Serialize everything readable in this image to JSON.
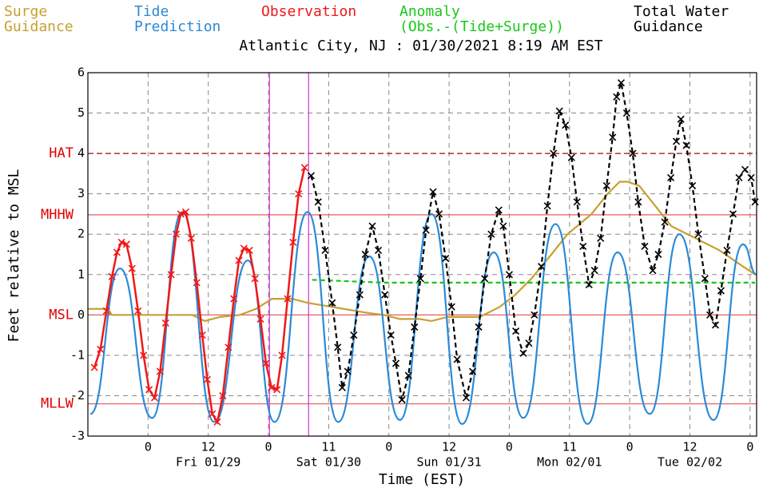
{
  "chart_data": {
    "type": "line",
    "title": "Atlantic City, NJ : 01/30/2021 8:19 AM EST",
    "y_label": "Feet relative to MSL",
    "x_label": "Time (EST)",
    "xlim": [
      -12,
      121.3
    ],
    "ylim": [
      -3,
      6
    ],
    "yticks": [
      -3,
      -2,
      -1,
      0,
      1,
      2,
      3,
      4,
      5,
      6
    ],
    "xticks": [
      0,
      12,
      {
        "value": 24,
        "label": "0"
      },
      {
        "value": 36,
        "label": "11"
      },
      {
        "value": 48,
        "label": "0"
      },
      {
        "value": 60,
        "label": "12"
      },
      {
        "value": 72,
        "label": "0"
      },
      {
        "value": 84,
        "label": "11"
      },
      {
        "value": 96,
        "label": "0"
      },
      {
        "value": 108,
        "label": "12"
      },
      {
        "value": 120,
        "label": "0"
      }
    ],
    "day_labels": [
      {
        "value": 12,
        "label": "Fri 01/29"
      },
      {
        "value": 36,
        "label": "Sat 01/30"
      },
      {
        "value": 60,
        "label": "Sun 01/31"
      },
      {
        "value": 84,
        "label": "Mon 02/01"
      },
      {
        "value": 108,
        "label": "Tue 02/02"
      }
    ],
    "grid": true,
    "datums": [
      {
        "label": "HAT",
        "value": 4,
        "style": "dashed",
        "color": "#a01010"
      },
      {
        "label": "MHHW",
        "value": 2.48,
        "style": "solid",
        "color": "#e86a6a"
      },
      {
        "label": "MSL",
        "value": 0,
        "style": "solid",
        "color": "#e86a6a"
      },
      {
        "label": "MLLW",
        "value": -2.2,
        "style": "solid",
        "color": "#e86a6a"
      }
    ],
    "datum_label_color": "#e00000",
    "vlines": [
      24.2,
      32
    ],
    "vline_color": "#d040d8",
    "series": [
      {
        "name": [
          "Surge",
          "Guidance"
        ],
        "color": "#c8a032",
        "style": "solid",
        "markers": false,
        "smooth": false,
        "x": [
          -11.9,
          -8.0,
          -7.2,
          8.8,
          11.3,
          14.3,
          18.3,
          21.5,
          24.7,
          28.7,
          31.8,
          34.2,
          39.0,
          43.8,
          47.0,
          50.2,
          54.1,
          56.5,
          59.7,
          66.1,
          70.1,
          73.2,
          76.4,
          80.4,
          83.6,
          88.4,
          91.6,
          94.0,
          95.5,
          97.9,
          101.1,
          104.3,
          109.1,
          113.9,
          118.6,
          121.0
        ],
        "values": [
          0.15,
          0.15,
          0,
          0,
          -0.15,
          -0.05,
          0,
          0.15,
          0.4,
          0.4,
          0.3,
          0.25,
          0.15,
          0.05,
          0,
          -0.1,
          -0.1,
          -0.15,
          -0.05,
          -0.05,
          0.2,
          0.5,
          0.9,
          1.5,
          2.0,
          2.5,
          3.0,
          3.3,
          3.3,
          3.2,
          2.7,
          2.2,
          1.9,
          1.6,
          1.2,
          1.0
        ]
      },
      {
        "name": [
          "Tide",
          "Prediction"
        ],
        "color": "#2a8ad8",
        "style": "solid",
        "markers": false,
        "smooth": true,
        "x": [
          -11.5,
          -5.6,
          0.8,
          6.8,
          13.2,
          19.9,
          25.2,
          31.8,
          37.9,
          44.1,
          50.2,
          56.5,
          62.6,
          68.9,
          74.8,
          81.2,
          87.6,
          93.6,
          100.0,
          105.9,
          112.7,
          118.6,
          121.3
        ],
        "values": [
          -2.45,
          1.15,
          -2.55,
          2.55,
          -2.65,
          1.35,
          -2.65,
          2.55,
          -2.65,
          1.45,
          -2.6,
          2.5,
          -2.7,
          1.55,
          -2.55,
          2.25,
          -2.7,
          1.55,
          -2.45,
          2.0,
          -2.6,
          1.75,
          1.0
        ]
      },
      {
        "name": [
          "Observation"
        ],
        "color": "#f01818",
        "style": "solid",
        "markers": true,
        "smooth": false,
        "x": [
          -10.7,
          -9.5,
          -8.3,
          -7.2,
          -6.2,
          -5.3,
          -4.3,
          -3.2,
          -2.0,
          -0.9,
          0.2,
          1.3,
          2.4,
          3.5,
          4.6,
          5.6,
          6.5,
          7.5,
          8.6,
          9.7,
          10.8,
          11.8,
          12.8,
          13.8,
          14.9,
          16.0,
          17.1,
          18.1,
          19.1,
          20.2,
          21.3,
          22.4,
          23.5,
          24.6,
          25.7,
          26.7,
          27.8,
          28.9,
          30.0,
          31.2
        ],
        "values": [
          -1.3,
          -0.85,
          0.1,
          0.95,
          1.55,
          1.8,
          1.75,
          1.15,
          0.1,
          -1.0,
          -1.85,
          -2.05,
          -1.4,
          -0.2,
          1.0,
          2.0,
          2.5,
          2.55,
          1.9,
          0.8,
          -0.5,
          -1.6,
          -2.45,
          -2.65,
          -2.0,
          -0.8,
          0.4,
          1.35,
          1.65,
          1.6,
          0.9,
          -0.1,
          -1.2,
          -1.8,
          -1.85,
          -1.0,
          0.4,
          1.8,
          3.0,
          3.65
        ]
      },
      {
        "name": [
          "Anomaly",
          "(Obs.-(Tide+Surge))"
        ],
        "color": "#18c818",
        "style": "dashed",
        "markers": false,
        "smooth": false,
        "x": [
          32.7,
          47,
          121
        ],
        "values": [
          0.87,
          0.8,
          0.8
        ]
      },
      {
        "name": [
          "Total Water",
          "Guidance"
        ],
        "color": "#000000",
        "style": "dashed",
        "markers": true,
        "smooth": false,
        "x": [
          32.5,
          33.9,
          35.3,
          36.7,
          37.8,
          38.7,
          39.8,
          41.0,
          42.2,
          43.3,
          44.7,
          45.9,
          47.2,
          48.4,
          49.4,
          50.6,
          51.9,
          53.1,
          54.3,
          55.4,
          56.8,
          58.0,
          59.3,
          60.5,
          61.6,
          63.4,
          64.7,
          65.9,
          67.1,
          68.4,
          69.9,
          70.8,
          72.0,
          73.3,
          74.8,
          75.9,
          77.0,
          78.4,
          79.6,
          80.8,
          82.0,
          83.2,
          84.4,
          85.5,
          86.7,
          87.9,
          89.0,
          90.2,
          91.4,
          92.6,
          93.4,
          94.3,
          95.4,
          96.6,
          97.7,
          99.0,
          100.6,
          101.7,
          103.0,
          104.2,
          105.3,
          106.2,
          107.3,
          108.5,
          109.7,
          111.0,
          112.0,
          113.1,
          114.2,
          115.4,
          116.6,
          117.8,
          119.0,
          120.2,
          121.0
        ],
        "values": [
          3.45,
          2.8,
          1.6,
          0.3,
          -0.8,
          -1.8,
          -1.4,
          -0.5,
          0.5,
          1.5,
          2.2,
          1.6,
          0.5,
          -0.5,
          -1.2,
          -2.1,
          -1.5,
          -0.3,
          0.9,
          2.1,
          3.05,
          2.5,
          1.4,
          0.2,
          -1.1,
          -2.05,
          -1.4,
          -0.3,
          0.9,
          2.0,
          2.6,
          2.2,
          1.0,
          -0.4,
          -0.95,
          -0.7,
          0.0,
          1.2,
          2.7,
          4.0,
          5.05,
          4.7,
          3.9,
          2.8,
          1.7,
          0.75,
          1.1,
          1.9,
          3.2,
          4.4,
          5.4,
          5.75,
          5.0,
          4.0,
          2.8,
          1.7,
          1.1,
          1.5,
          2.3,
          3.4,
          4.3,
          4.85,
          4.2,
          3.2,
          2.0,
          0.9,
          0.0,
          -0.25,
          0.6,
          1.6,
          2.5,
          3.4,
          3.6,
          3.4,
          2.8
        ]
      }
    ]
  }
}
